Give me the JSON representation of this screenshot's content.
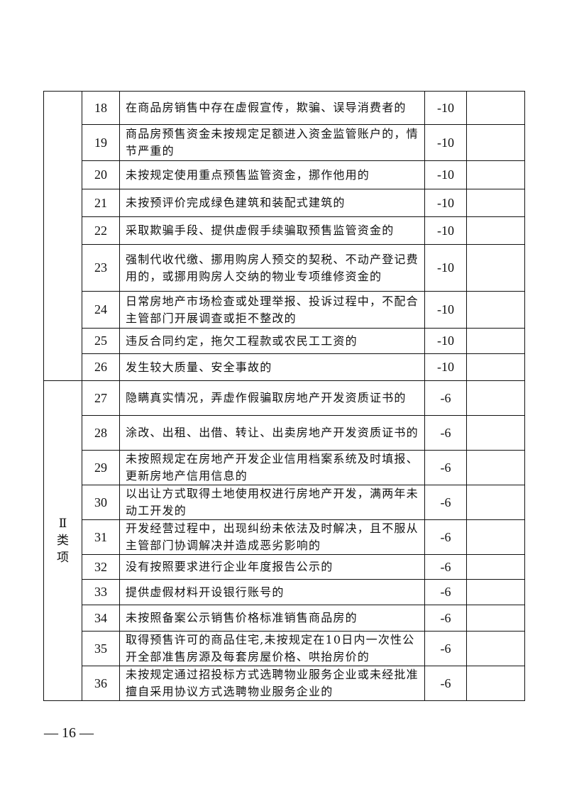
{
  "table": {
    "groups": [
      {
        "label": "",
        "rows": [
          {
            "no": "18",
            "desc": "在商品房销售中存在虚假宣传，欺骗、误导消费者的",
            "score": "-10",
            "note": ""
          },
          {
            "no": "19",
            "desc": "商品房预售资金未按规定足额进入资金监管账户的，情节严重的",
            "score": "-10",
            "note": ""
          },
          {
            "no": "20",
            "desc": "未按规定使用重点预售监管资金，挪作他用的",
            "score": "-10",
            "note": ""
          },
          {
            "no": "21",
            "desc": "未按预评价完成绿色建筑和装配式建筑的",
            "score": "-10",
            "note": ""
          },
          {
            "no": "22",
            "desc": "采取欺骗手段、提供虚假手续骗取预售监管资金的",
            "score": "-10",
            "note": ""
          },
          {
            "no": "23",
            "desc": "强制代收代缴、挪用购房人预交的契税、不动产登记费用的，或挪用购房人交纳的物业专项维修资金的",
            "score": "-10",
            "note": ""
          },
          {
            "no": "24",
            "desc": "日常房地产市场检查或处理举报、投诉过程中，不配合主管部门开展调查或拒不整改的",
            "score": "-10",
            "note": ""
          },
          {
            "no": "25",
            "desc": "违反合同约定，拖欠工程款或农民工工资的",
            "score": "-10",
            "note": ""
          },
          {
            "no": "26",
            "desc": "发生较大质量、安全事故的",
            "score": "-10",
            "note": ""
          }
        ]
      },
      {
        "label": "Ⅱ类项",
        "rows": [
          {
            "no": "27",
            "desc": "隐瞒真实情况，弄虚作假骗取房地产开发资质证书的",
            "score": "-6",
            "note": ""
          },
          {
            "no": "28",
            "desc": "涂改、出租、出借、转让、出卖房地产开发资质证书的",
            "score": "-6",
            "note": ""
          },
          {
            "no": "29",
            "desc": "未按照规定在房地产开发企业信用档案系统及时填报、更新房地产信用信息的",
            "score": "-6",
            "note": ""
          },
          {
            "no": "30",
            "desc": "以出让方式取得土地使用权进行房地产开发，满两年未动工开发的",
            "score": "-6",
            "note": ""
          },
          {
            "no": "31",
            "desc": "开发经营过程中，出现纠纷未依法及时解决，且不服从主管部门协调解决并造成恶劣影响的",
            "score": "-6",
            "note": ""
          },
          {
            "no": "32",
            "desc": "没有按照要求进行企业年度报告公示的",
            "score": "-6",
            "note": ""
          },
          {
            "no": "33",
            "desc": "提供虚假材料开设银行账号的",
            "score": "-6",
            "note": ""
          },
          {
            "no": "34",
            "desc": "未按照备案公示销售价格标准销售商品房的",
            "score": "-6",
            "note": ""
          },
          {
            "no": "35",
            "desc": "取得预售许可的商品住宅,未按规定在10日内一次性公开全部准售房源及每套房屋价格、哄抬房价的",
            "score": "-6",
            "note": ""
          },
          {
            "no": "36",
            "desc": "未按规定通过招投标方式选聘物业服务企业或未经批准擅自采用协议方式选聘物业服务企业的",
            "score": "-6",
            "note": ""
          }
        ]
      }
    ]
  },
  "footer": {
    "page_number": "— 16 —"
  }
}
